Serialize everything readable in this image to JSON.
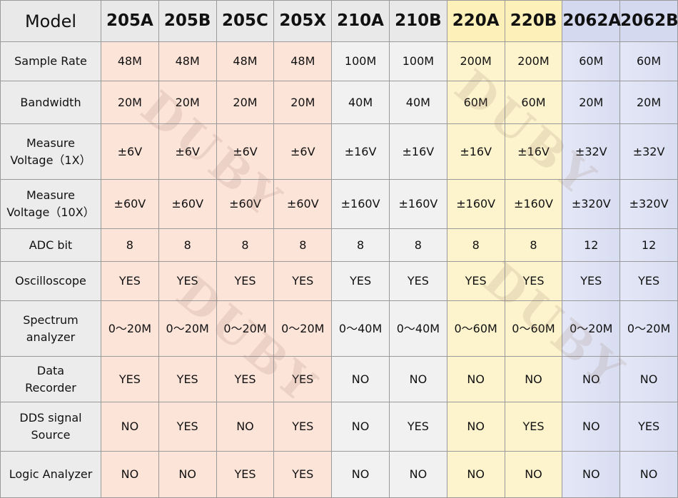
{
  "table": {
    "header": [
      "Model",
      "205A",
      "205B",
      "205C",
      "205X",
      "210A",
      "210B",
      "220A",
      "220B",
      "2062A",
      "2062B"
    ],
    "rows": [
      [
        "Sample Rate",
        "48M",
        "48M",
        "48M",
        "48M",
        "100M",
        "100M",
        "200M",
        "200M",
        "60M",
        "60M"
      ],
      [
        "Bandwidth",
        "20M",
        "20M",
        "20M",
        "20M",
        "40M",
        "40M",
        "60M",
        "60M",
        "20M",
        "20M"
      ],
      [
        "Measure\nVoltage（1X）",
        "±6V",
        "±6V",
        "±6V",
        "±6V",
        "±16V",
        "±16V",
        "±16V",
        "±16V",
        "±32V",
        "±32V"
      ],
      [
        "Measure\nVoltage（10X）",
        "±60V",
        "±60V",
        "±60V",
        "±60V",
        "±160V",
        "±160V",
        "±160V",
        "±160V",
        "±320V",
        "±320V"
      ],
      [
        "ADC bit",
        "8",
        "8",
        "8",
        "8",
        "8",
        "8",
        "8",
        "8",
        "12",
        "12"
      ],
      [
        "Oscilloscope",
        "YES",
        "YES",
        "YES",
        "YES",
        "YES",
        "YES",
        "YES",
        "YES",
        "YES",
        "YES"
      ],
      [
        "Spectrum\nanalyzer",
        "0～20M",
        "0～20M",
        "0～20M",
        "0～20M",
        "0～40M",
        "0～40M",
        "0～60M",
        "0～60M",
        "0～20M",
        "0～20M"
      ],
      [
        "Data\nRecorder",
        "YES",
        "YES",
        "YES",
        "YES",
        "NO",
        "NO",
        "NO",
        "NO",
        "NO",
        "NO"
      ],
      [
        "DDS signal\nSource",
        "NO",
        "YES",
        "NO",
        "YES",
        "NO",
        "YES",
        "NO",
        "YES",
        "NO",
        "YES"
      ],
      [
        "Logic Analyzer",
        "NO",
        "NO",
        "YES",
        "YES",
        "NO",
        "NO",
        "NO",
        "NO",
        "NO",
        "NO"
      ]
    ],
    "watermark": "DUBY"
  }
}
